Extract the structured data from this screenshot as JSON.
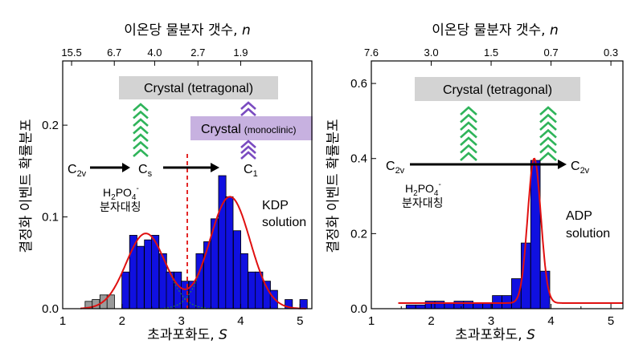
{
  "chart_data": [
    {
      "type": "bar",
      "series_label": "KDP solution",
      "series_label_lines": [
        "KDP",
        "solution"
      ],
      "xlabel_prefix": "초과포화도, ",
      "xlabel_var": "S",
      "ylabel": "결정화 이벤트 확률분포",
      "top_xlabel_prefix": "이온당 물분자 갯수, ",
      "top_xlabel_var": "n",
      "xlim": [
        1,
        5.2
      ],
      "ylim": [
        0,
        0.27
      ],
      "x_ticks": [
        1,
        2,
        3,
        4,
        5
      ],
      "x_tick_labels": [
        "1",
        "2",
        "3",
        "4",
        "5"
      ],
      "y_ticks": [
        0.0,
        0.1,
        0.2
      ],
      "y_tick_labels": [
        "0.0",
        "0.1",
        "0.2"
      ],
      "top_ticks_s": [
        1.15,
        1.87,
        2.55,
        3.28,
        4.0
      ],
      "top_tick_labels": [
        "15.5",
        "6.7",
        "4.0",
        "2.7",
        "1.9"
      ],
      "bin_width": 0.125,
      "bars": [
        {
          "x": 1.44,
          "y": 0.008,
          "color": "gray"
        },
        {
          "x": 1.56,
          "y": 0.01,
          "color": "gray"
        },
        {
          "x": 1.69,
          "y": 0.015,
          "color": "gray"
        },
        {
          "x": 1.81,
          "y": 0.015,
          "color": "gray"
        },
        {
          "x": 2.06,
          "y": 0.04,
          "color": "blue"
        },
        {
          "x": 2.19,
          "y": 0.08,
          "color": "blue"
        },
        {
          "x": 2.31,
          "y": 0.068,
          "color": "blue"
        },
        {
          "x": 2.44,
          "y": 0.075,
          "color": "blue"
        },
        {
          "x": 2.56,
          "y": 0.08,
          "color": "blue"
        },
        {
          "x": 2.69,
          "y": 0.06,
          "color": "blue"
        },
        {
          "x": 2.81,
          "y": 0.04,
          "color": "blue"
        },
        {
          "x": 2.94,
          "y": 0.04,
          "color": "blue"
        },
        {
          "x": 3.06,
          "y": 0.03,
          "color": "blue"
        },
        {
          "x": 3.19,
          "y": 0.03,
          "color": "blue"
        },
        {
          "x": 3.31,
          "y": 0.06,
          "color": "blue"
        },
        {
          "x": 3.44,
          "y": 0.073,
          "color": "blue"
        },
        {
          "x": 3.56,
          "y": 0.098,
          "color": "blue"
        },
        {
          "x": 3.69,
          "y": 0.145,
          "color": "blue"
        },
        {
          "x": 3.81,
          "y": 0.122,
          "color": "blue"
        },
        {
          "x": 3.94,
          "y": 0.085,
          "color": "blue"
        },
        {
          "x": 4.06,
          "y": 0.06,
          "color": "blue"
        },
        {
          "x": 4.19,
          "y": 0.04,
          "color": "blue"
        },
        {
          "x": 4.31,
          "y": 0.04,
          "color": "blue"
        },
        {
          "x": 4.44,
          "y": 0.03,
          "color": "blue"
        },
        {
          "x": 4.56,
          "y": 0.02,
          "color": "blue"
        },
        {
          "x": 4.81,
          "y": 0.01,
          "color": "blue"
        },
        {
          "x": 5.06,
          "y": 0.01,
          "color": "blue"
        }
      ],
      "fit_gaussians": [
        {
          "amp": 0.082,
          "mu": 2.4,
          "sigma": 0.33
        },
        {
          "amp": 0.122,
          "mu": 3.82,
          "sigma": 0.34
        }
      ],
      "dashed_line_x": 3.1,
      "annotations": {
        "crystal_tetragonal": "Crystal (tetragonal)",
        "crystal_monoclinic_main": "Crystal",
        "crystal_monoclinic_sub": "(monoclinic)",
        "species": [
          "C",
          "C",
          "C"
        ],
        "species_sub": [
          "2v",
          "s",
          "1"
        ],
        "ion_base": "H",
        "ion_sub1": "2",
        "ion_mid": "PO",
        "ion_sub2": "4",
        "ion_sup": "-",
        "symmetry_label": "분자대칭"
      },
      "colors": {
        "bars": "#1010e0",
        "bars_low": "#9a9a9a",
        "fit": "#e01010",
        "components": "#2a9a2a",
        "chevron_green": "#2fb45a",
        "chevron_purple": "#7a4bc0",
        "box_gray": "#d3d3d3",
        "box_purple": "#c7b1e0"
      }
    },
    {
      "type": "bar",
      "series_label": "ADP solution",
      "series_label_lines": [
        "ADP",
        "solution"
      ],
      "xlabel_prefix": "초과포화도, ",
      "xlabel_var": "S",
      "ylabel": "결정화 이벤트 확률분포",
      "top_xlabel_prefix": "이온당 물분자 갯수, ",
      "top_xlabel_var": "n",
      "xlim": [
        1,
        5.2
      ],
      "ylim": [
        0,
        0.66
      ],
      "x_ticks": [
        1,
        2,
        3,
        4,
        5
      ],
      "x_tick_labels": [
        "1",
        "2",
        "3",
        "4",
        "5"
      ],
      "y_ticks": [
        0.0,
        0.2,
        0.4,
        0.6
      ],
      "y_tick_labels": [
        "0.0",
        "0.2",
        "0.4",
        "0.6"
      ],
      "top_ticks_s": [
        1.0,
        2.0,
        3.0,
        4.0,
        5.0
      ],
      "top_tick_labels": [
        "7.6",
        "3.0",
        "1.5",
        "0.7",
        "0.3"
      ],
      "bin_width": 0.158,
      "bars": [
        {
          "x": 1.66,
          "y": 0.01
        },
        {
          "x": 1.82,
          "y": 0.01
        },
        {
          "x": 1.98,
          "y": 0.02
        },
        {
          "x": 2.14,
          "y": 0.02
        },
        {
          "x": 2.3,
          "y": 0.015
        },
        {
          "x": 2.46,
          "y": 0.02
        },
        {
          "x": 2.62,
          "y": 0.02
        },
        {
          "x": 2.78,
          "y": 0.015
        },
        {
          "x": 2.94,
          "y": 0.015
        },
        {
          "x": 3.1,
          "y": 0.035
        },
        {
          "x": 3.26,
          "y": 0.035
        },
        {
          "x": 3.42,
          "y": 0.08
        },
        {
          "x": 3.58,
          "y": 0.175
        },
        {
          "x": 3.74,
          "y": 0.395
        },
        {
          "x": 3.9,
          "y": 0.1
        }
      ],
      "fit_gaussians": [
        {
          "amp": 0.385,
          "mu": 3.72,
          "sigma": 0.11
        }
      ],
      "fit_baseline": 0.015,
      "fit_range": [
        1.45,
        5.2
      ],
      "annotations": {
        "crystal_tetragonal": "Crystal (tetragonal)",
        "species": [
          "C",
          "C"
        ],
        "species_sub": [
          "2v",
          "2v"
        ],
        "ion_base": "H",
        "ion_sub1": "2",
        "ion_mid": "PO",
        "ion_sub2": "4",
        "ion_sup": "-",
        "symmetry_label": "분자대칭"
      },
      "colors": {
        "bars": "#1010e0",
        "fit": "#e01010",
        "chevron_green": "#2fb45a",
        "box_gray": "#d3d3d3"
      }
    }
  ]
}
